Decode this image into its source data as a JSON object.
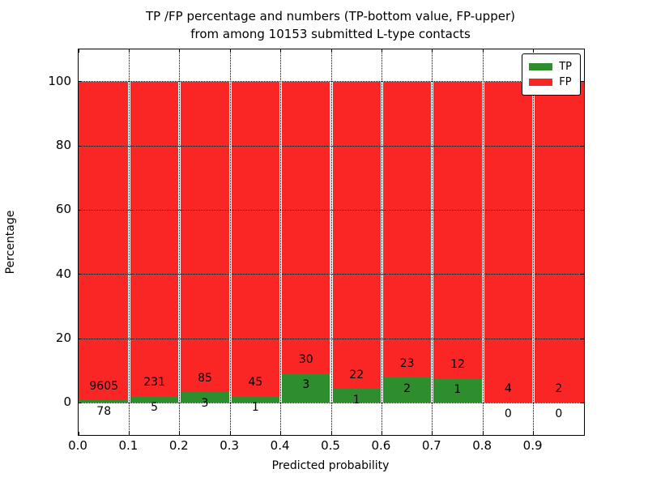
{
  "figure": {
    "title_line1": "TP /FP percentage and numbers (TP-bottom value, FP-upper)",
    "title_line2": "from among 10153 submitted L-type contacts",
    "xlabel": "Predicted probability",
    "ylabel": "Percentage"
  },
  "legend": {
    "items": [
      {
        "label": "TP",
        "color": "#2e8e2e"
      },
      {
        "label": "FP",
        "color": "#fa2525"
      }
    ]
  },
  "chart_data": {
    "type": "bar",
    "stacked": true,
    "normalized": "percent",
    "title": "TP /FP percentage and numbers (TP-bottom value, FP-upper) from among 10153 submitted L-type contacts",
    "xlabel": "Predicted probability",
    "ylabel": "Percentage",
    "xlim": [
      0.0,
      1.0
    ],
    "ylim": [
      -10,
      110
    ],
    "xtick_values": [
      0.0,
      0.1,
      0.2,
      0.3,
      0.4,
      0.5,
      0.6,
      0.7,
      0.8,
      0.9
    ],
    "xtick_labels": [
      "0.0",
      "0.1",
      "0.2",
      "0.3",
      "0.4",
      "0.5",
      "0.6",
      "0.7",
      "0.8",
      "0.9"
    ],
    "ytick_values": [
      0,
      20,
      40,
      60,
      80,
      100
    ],
    "ytick_labels": [
      "0",
      "20",
      "40",
      "60",
      "80",
      "100"
    ],
    "grid": true,
    "legend_position": "upper right",
    "total_contacts": 10153,
    "bins": [
      "0.0-0.1",
      "0.1-0.2",
      "0.2-0.3",
      "0.3-0.4",
      "0.4-0.5",
      "0.5-0.6",
      "0.6-0.7",
      "0.7-0.8",
      "0.8-0.9",
      "0.9-1.0"
    ],
    "series": [
      {
        "name": "TP",
        "color": "#2e8e2e",
        "counts": [
          78,
          5,
          3,
          1,
          3,
          1,
          2,
          1,
          0,
          0
        ]
      },
      {
        "name": "FP",
        "color": "#fa2525",
        "counts": [
          9605,
          231,
          85,
          45,
          30,
          22,
          23,
          12,
          4,
          2
        ]
      }
    ]
  }
}
